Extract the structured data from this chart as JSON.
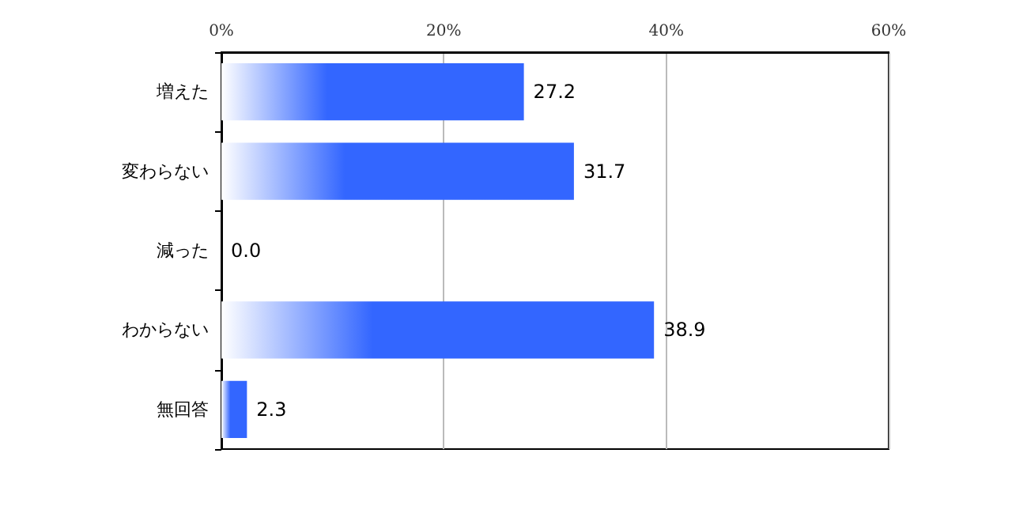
{
  "chart_data": {
    "type": "bar",
    "orientation": "horizontal",
    "categories": [
      "増えた",
      "変わらない",
      "減った",
      "わからない",
      "無回答"
    ],
    "values": [
      27.2,
      31.7,
      0.0,
      38.9,
      2.3
    ],
    "value_labels": [
      "27.2",
      "31.7",
      "0.0",
      "38.9",
      "2.3"
    ],
    "color": "#3366ff",
    "xlim": [
      0,
      60
    ],
    "xticks": [
      {
        "value": 0,
        "label": "0%"
      },
      {
        "value": 20,
        "label": "20%"
      },
      {
        "value": 40,
        "label": "40%"
      },
      {
        "value": 60,
        "label": "60%"
      }
    ],
    "grid": "x"
  }
}
